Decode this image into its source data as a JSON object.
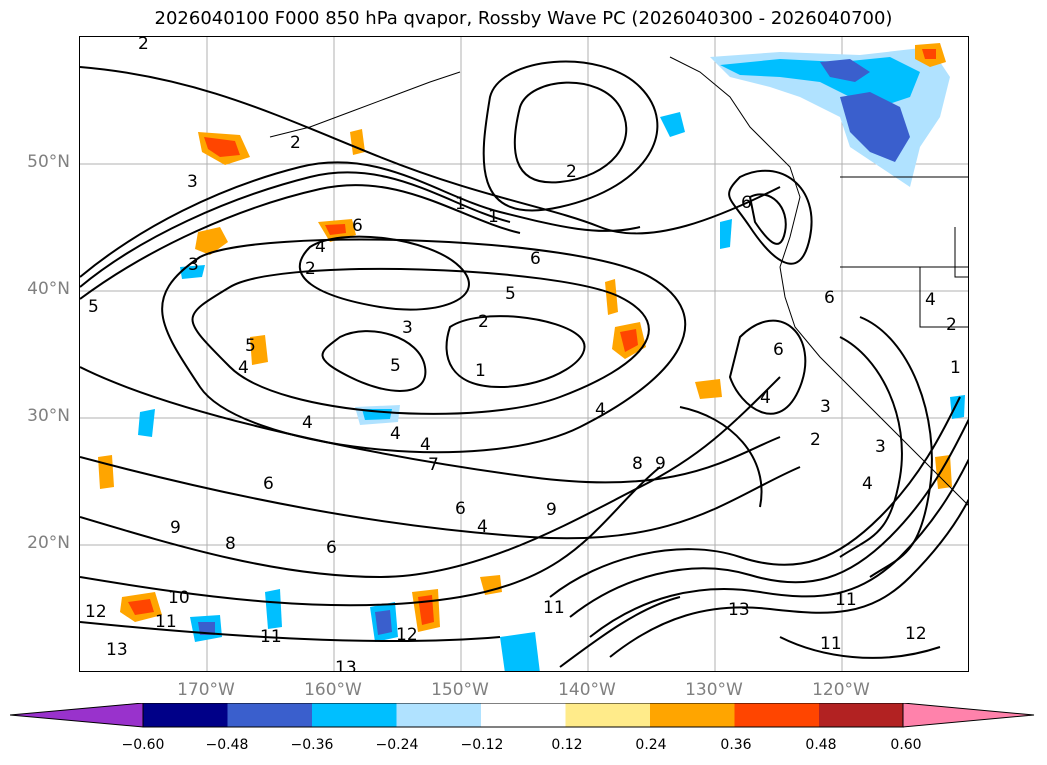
{
  "title": "2026040100 F000 850 hPa qvapor, Rossby Wave PC (2026040300 - 2026040700)",
  "map": {
    "lat_labels": [
      "50°N",
      "40°N",
      "30°N",
      "20°N"
    ],
    "lon_labels": [
      "170°W",
      "160°W",
      "150°W",
      "140°W",
      "130°W",
      "120°W"
    ],
    "contour_labels": [
      "2",
      "3",
      "1",
      "6",
      "2",
      "4",
      "2",
      "5",
      "3",
      "2",
      "1",
      "5",
      "4",
      "5",
      "1",
      "4",
      "4",
      "4",
      "7",
      "6",
      "8",
      "9",
      "9",
      "6",
      "4",
      "9",
      "8",
      "6",
      "10",
      "11",
      "12",
      "13",
      "11",
      "12",
      "11",
      "13",
      "11",
      "12",
      "11",
      "13",
      "3",
      "2",
      "3",
      "4",
      "1",
      "4",
      "2",
      "6",
      "6",
      "4",
      "5",
      "3",
      "2",
      "6",
      "6",
      "4"
    ]
  },
  "colorbar": {
    "colors": [
      "#9932cc",
      "#000088",
      "#3a5fcd",
      "#00bfff",
      "#b0e2ff",
      "#ffffff",
      "#ffeb8a",
      "#ffa500",
      "#ff4500",
      "#b22222",
      "#ff82ab"
    ],
    "tick_labels": [
      "−0.60",
      "−0.48",
      "−0.36",
      "−0.24",
      "−0.12",
      "0.12",
      "0.24",
      "0.36",
      "0.48",
      "0.60"
    ]
  }
}
